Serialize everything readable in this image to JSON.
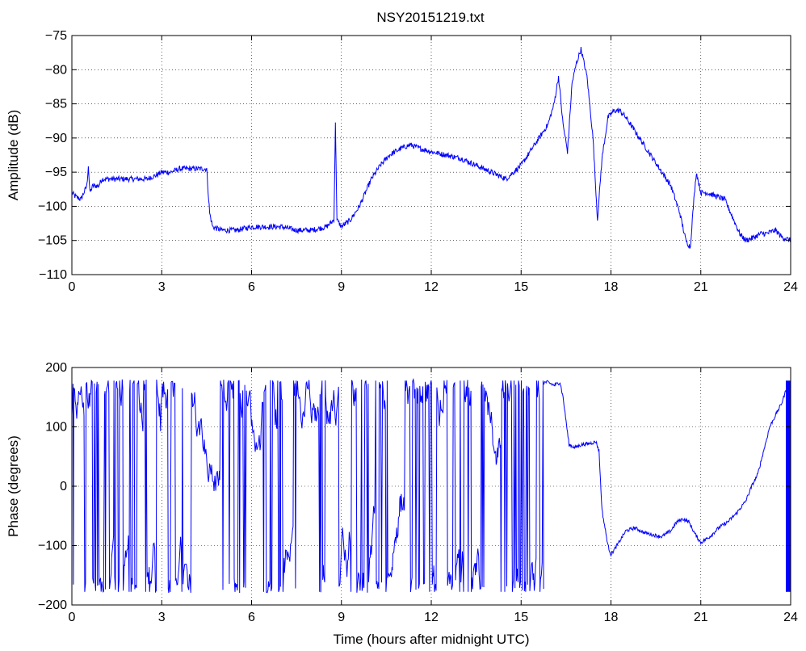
{
  "figure": {
    "title": "NSY20151219.txt"
  },
  "chart_data": [
    {
      "type": "line",
      "title": "NSY20151219.txt",
      "xlabel": "",
      "ylabel": "Amplitude (dB)",
      "xlim": [
        0,
        24
      ],
      "ylim": [
        -110,
        -75
      ],
      "xticks": [
        "0",
        "3",
        "6",
        "9",
        "12",
        "15",
        "18",
        "21",
        "24"
      ],
      "yticks": [
        "-75",
        "-80",
        "-85",
        "-90",
        "-95",
        "-100",
        "-105",
        "-110"
      ],
      "grid": true,
      "line_color": "#0000ff",
      "series": [
        {
          "x": [
            0,
            0.1,
            0.3,
            0.5,
            0.55,
            0.6,
            0.7,
            0.9,
            1.0,
            1.2,
            1.5,
            1.8,
            2.0,
            2.2,
            2.5,
            2.8,
            3.0,
            3.3,
            3.6,
            3.9,
            4.2,
            4.5,
            4.6,
            4.7,
            5.0,
            5.5,
            6.0,
            6.5,
            7.0,
            7.5,
            8.0,
            8.5,
            8.75,
            8.8,
            8.85,
            9.0,
            9.3,
            9.6,
            9.8,
            10.0,
            10.3,
            10.6,
            11.0,
            11.3,
            11.6,
            12.0,
            12.5,
            13.0,
            13.5,
            14.0,
            14.5,
            15.0,
            15.3,
            15.6,
            15.9,
            16.1,
            16.25,
            16.4,
            16.55,
            16.7,
            16.85,
            17.0,
            17.2,
            17.4,
            17.55,
            17.7,
            17.9,
            18.1,
            18.3,
            18.5,
            18.8,
            19.1,
            19.4,
            19.7,
            20.0,
            20.3,
            20.5,
            20.65,
            20.75,
            20.85,
            21.0,
            21.2,
            21.5,
            21.8,
            22.0,
            22.3,
            22.5,
            22.8,
            23.0,
            23.2,
            23.5,
            23.7,
            24.0
          ],
          "y": [
            -98,
            -98.5,
            -99,
            -97,
            -94,
            -98,
            -97,
            -97,
            -96,
            -96,
            -96,
            -96,
            -96,
            -96,
            -96,
            -95.5,
            -95,
            -95,
            -94.5,
            -94.5,
            -94.5,
            -94.5,
            -101,
            -103,
            -103.5,
            -103.5,
            -103,
            -103,
            -103,
            -103.5,
            -103.5,
            -103,
            -102,
            -88,
            -102,
            -103,
            -102,
            -100,
            -98,
            -96,
            -94,
            -92.5,
            -91.5,
            -91,
            -91.5,
            -92,
            -92.5,
            -93,
            -94,
            -95,
            -96,
            -94,
            -92,
            -90,
            -88,
            -85,
            -81,
            -88,
            -92,
            -82,
            -79,
            -77,
            -81,
            -90,
            -102,
            -93,
            -87,
            -86,
            -86,
            -87,
            -89,
            -91,
            -93,
            -95,
            -97,
            -101,
            -105,
            -106,
            -100,
            -95,
            -98,
            -98,
            -98.5,
            -99,
            -101,
            -104,
            -105,
            -104.5,
            -104,
            -104,
            -103.5,
            -104.5,
            -105
          ]
        }
      ]
    },
    {
      "type": "line",
      "title": "",
      "xlabel": "Time (hours after midnight UTC)",
      "ylabel": "Phase (degrees)",
      "xlim": [
        0,
        24
      ],
      "ylim": [
        -200,
        200
      ],
      "xticks": [
        "0",
        "3",
        "6",
        "9",
        "12",
        "15",
        "18",
        "21",
        "24"
      ],
      "yticks": [
        "200",
        "100",
        "0",
        "-100",
        "-200"
      ],
      "grid": true,
      "line_color": "#0000ff",
      "series": [
        {
          "x": [
            15.75,
            15.9,
            16.1,
            16.3,
            16.4,
            16.6,
            16.8,
            17.0,
            17.3,
            17.5,
            17.6,
            17.7,
            17.9,
            18.0,
            18.2,
            18.5,
            18.8,
            19.1,
            19.4,
            19.7,
            20.0,
            20.2,
            20.4,
            20.6,
            20.8,
            21.0,
            21.3,
            21.6,
            21.9,
            22.2,
            22.5,
            22.7,
            22.9,
            23.1,
            23.3,
            23.5,
            23.7,
            23.9,
            24.0
          ],
          "y": [
            175,
            175,
            170,
            175,
            150,
            70,
            65,
            70,
            72,
            75,
            60,
            -40,
            -100,
            -115,
            -100,
            -75,
            -70,
            -78,
            -82,
            -85,
            -75,
            -60,
            -55,
            -60,
            -80,
            -95,
            -85,
            -70,
            -60,
            -45,
            -25,
            0,
            20,
            60,
            100,
            120,
            140,
            170,
            175
          ],
          "noisy_segment_note": ""
        }
      ]
    }
  ]
}
